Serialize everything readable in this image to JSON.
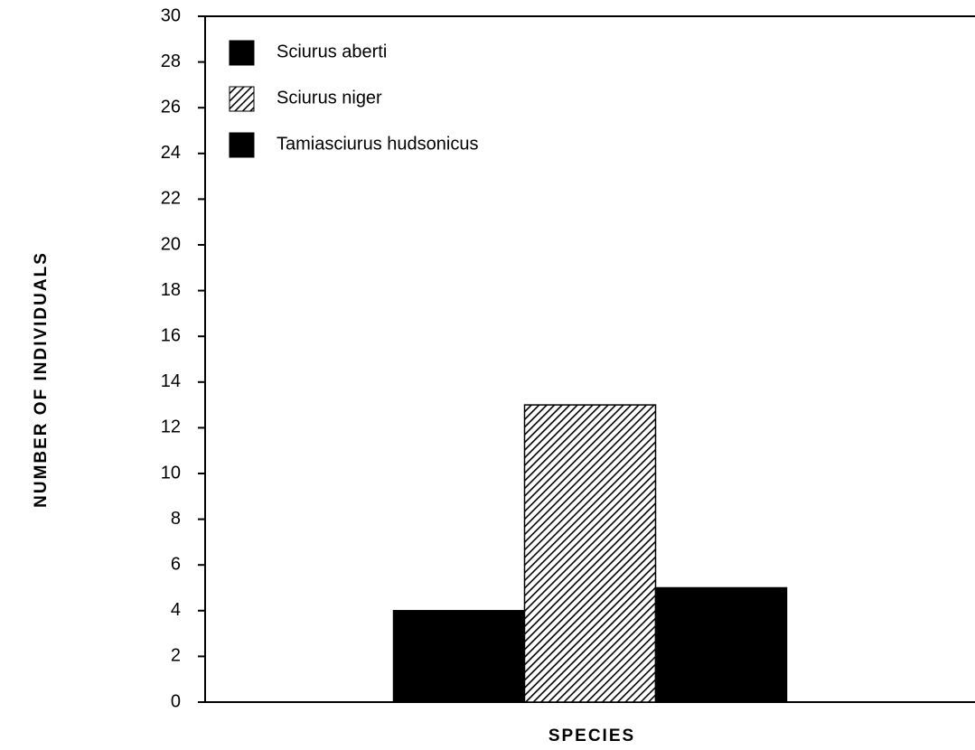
{
  "chart_data": {
    "type": "bar",
    "x_label": "SPECIES",
    "y_label": "NUMBER OF INDIVIDUALS",
    "categories": [
      null
    ],
    "series": [
      {
        "name": "Sciurus aberti",
        "color": "#000000",
        "values": [
          4
        ]
      },
      {
        "name": "Sciurus niger",
        "color": "#000000",
        "pattern": "hatch",
        "values": [
          13
        ]
      },
      {
        "name": "Tamiasciurus hudsonicus",
        "color": "#000000",
        "values": [
          5
        ]
      }
    ],
    "ylim": [
      0,
      30
    ],
    "yticks": [
      0,
      2,
      4,
      6,
      8,
      10,
      12,
      14,
      16,
      18,
      20,
      22,
      24,
      26,
      28,
      30
    ],
    "legend": "upper-left",
    "grid": false
  }
}
